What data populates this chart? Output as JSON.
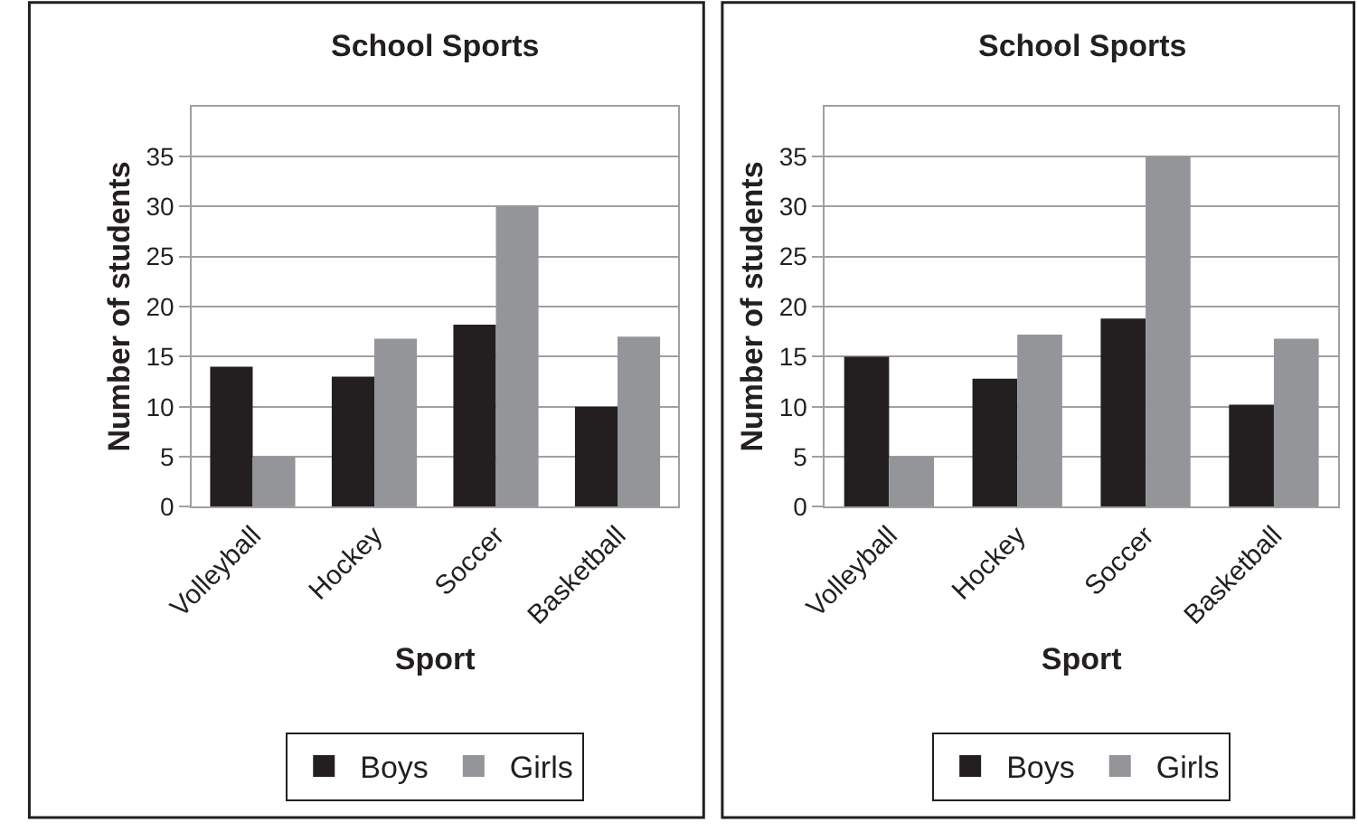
{
  "chart_data": [
    {
      "type": "bar",
      "title": "School Sports",
      "xlabel": "Sport",
      "ylabel": "Number of students",
      "categories": [
        "Volleyball",
        "Hockey",
        "Soccer",
        "Basketball"
      ],
      "series": [
        {
          "name": "Boys",
          "color": "#231f20",
          "values": [
            14,
            13,
            18.2,
            10
          ]
        },
        {
          "name": "Girls",
          "color": "#939598",
          "values": [
            5,
            16.8,
            30,
            17
          ]
        }
      ],
      "ylim": [
        0,
        40
      ],
      "yticks": [
        0,
        5,
        10,
        15,
        20,
        25,
        30,
        35
      ],
      "grid": "y",
      "legend": "bottom"
    },
    {
      "type": "bar",
      "title": "School Sports",
      "xlabel": "Sport",
      "ylabel": "Number of students",
      "categories": [
        "Volleyball",
        "Hockey",
        "Soccer",
        "Basketball"
      ],
      "series": [
        {
          "name": "Boys",
          "color": "#231f20",
          "values": [
            15,
            12.8,
            18.8,
            10.2
          ]
        },
        {
          "name": "Girls",
          "color": "#939598",
          "values": [
            5,
            17.2,
            35,
            16.8
          ]
        }
      ],
      "ylim": [
        0,
        40
      ],
      "yticks": [
        0,
        5,
        10,
        15,
        20,
        25,
        30,
        35
      ],
      "grid": "y",
      "legend": "bottom"
    }
  ]
}
